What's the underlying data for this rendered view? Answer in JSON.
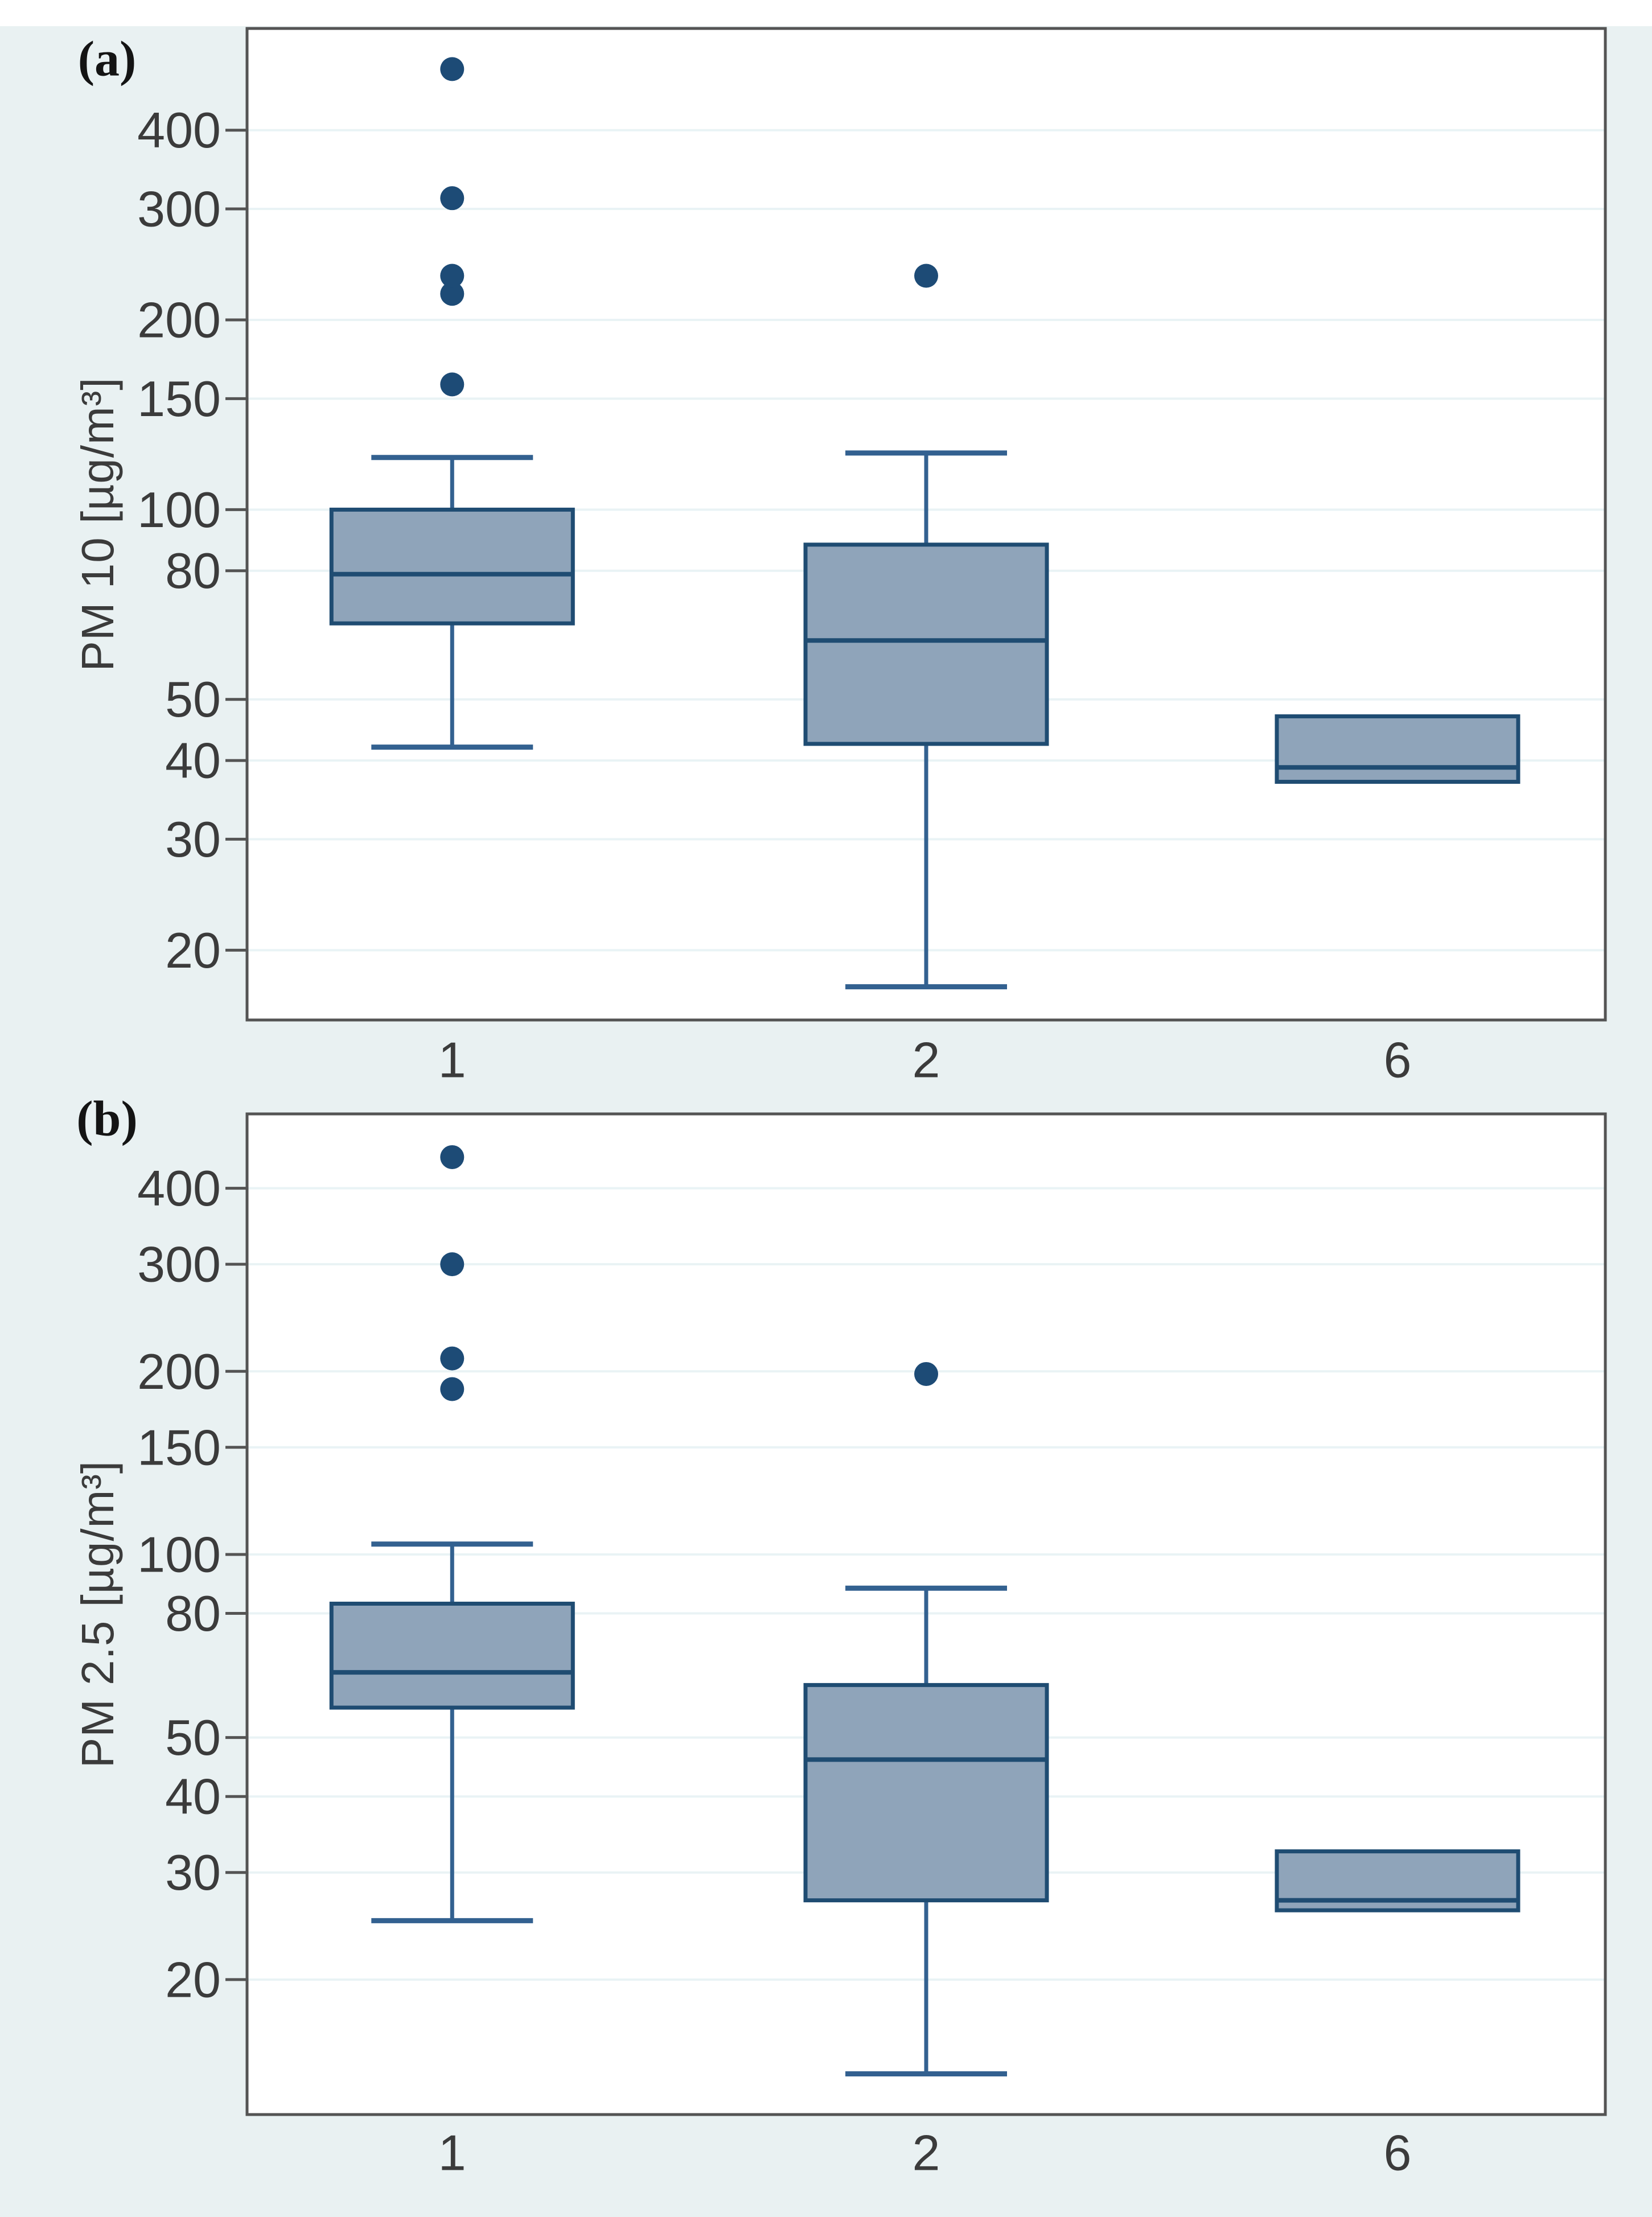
{
  "figure": {
    "description": "Two stacked Stata-style box plots of particulate matter concentrations by category",
    "x_category_axis_values": [
      "1",
      "2",
      "6"
    ]
  },
  "colors": {
    "page_background": "#e9f1f2",
    "plot_background": "#ffffff",
    "gridline": "#e9f3f5",
    "frame": "#545454",
    "text": "#3b3b3b",
    "box_fill": "#8fa4ba",
    "box_stroke": "#1f4c72",
    "whisker": "#336190",
    "outlier_dot": "#1d4b76"
  },
  "chart_data": [
    {
      "type": "box",
      "panel_label": "(a)",
      "ylabel": "PM 10 [µg/m³]",
      "xlabel": "",
      "log_scale": true,
      "grid": "horizontal",
      "legend": "none",
      "categories": [
        "1",
        "2",
        "6"
      ],
      "y_ticks": [
        20,
        30,
        40,
        50,
        80,
        100,
        150,
        200,
        300,
        400
      ],
      "ylim": [
        15.5,
        580
      ],
      "boxes": [
        {
          "category": "1",
          "whisker_low": 42,
          "q1": 66,
          "median": 79,
          "q3": 100,
          "whisker_high": 121,
          "outliers": [
            158,
            220,
            235,
            312,
            500
          ]
        },
        {
          "category": "2",
          "whisker_low": 17.5,
          "q1": 42.5,
          "median": 62,
          "q3": 88,
          "whisker_high": 123,
          "outliers": [
            235
          ]
        },
        {
          "category": "6",
          "whisker_low": null,
          "q1": 37,
          "median": 39,
          "q3": 47,
          "whisker_high": null,
          "outliers": []
        }
      ]
    },
    {
      "type": "box",
      "panel_label": "(b)",
      "ylabel": "PM 2.5 [µg/m³]",
      "xlabel": "",
      "log_scale": true,
      "grid": "horizontal",
      "legend": "none",
      "categories": [
        "1",
        "2",
        "6"
      ],
      "y_ticks": [
        20,
        30,
        40,
        50,
        80,
        100,
        150,
        200,
        300,
        400
      ],
      "ylim": [
        12,
        530
      ],
      "boxes": [
        {
          "category": "1",
          "whisker_low": 25,
          "q1": 56,
          "median": 64,
          "q3": 83,
          "whisker_high": 104,
          "outliers": [
            187,
            210,
            300,
            450
          ]
        },
        {
          "category": "2",
          "whisker_low": 14,
          "q1": 27,
          "median": 46,
          "q3": 61,
          "whisker_high": 88,
          "outliers": [
            198
          ]
        },
        {
          "category": "6",
          "whisker_low": null,
          "q1": 26,
          "median": 27,
          "q3": 32.5,
          "whisker_high": null,
          "outliers": []
        }
      ]
    }
  ]
}
